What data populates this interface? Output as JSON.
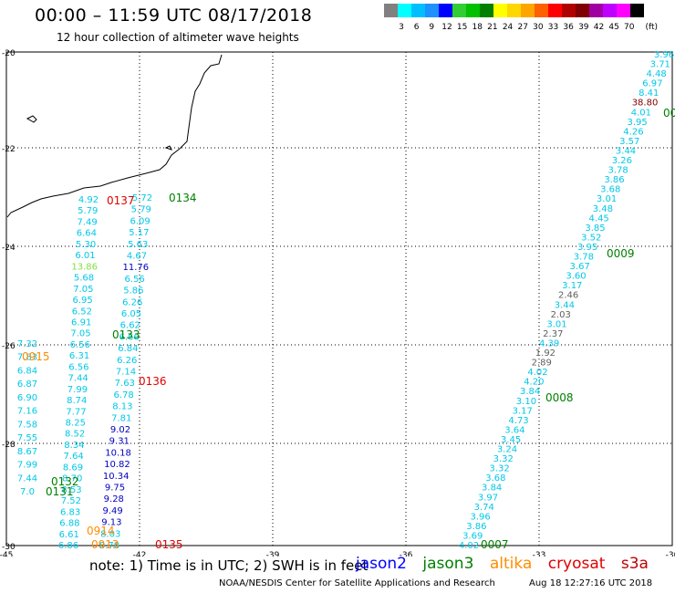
{
  "title": "00:00 – 11:59 UTC 08/17/2018",
  "subtitle": "12 hour collection of altimeter wave heights",
  "legend": {
    "colors": [
      "#808080",
      "#00ffff",
      "#00bfff",
      "#1e90ff",
      "#0000ff",
      "#32cd32",
      "#00c000",
      "#008000",
      "#ffff00",
      "#ffd700",
      "#ffa500",
      "#ff6000",
      "#ff0000",
      "#b00000",
      "#800000",
      "#a000a0",
      "#c000ff",
      "#ff00ff",
      "#000000"
    ],
    "labels": [
      "3",
      "6",
      "9",
      "12",
      "15",
      "18",
      "21",
      "24",
      "27",
      "30",
      "33",
      "36",
      "39",
      "42",
      "45",
      "70"
    ],
    "unit": "(ft)"
  },
  "axes": {
    "lat_labels": [
      "-20",
      "-22",
      "-24",
      "-26",
      "-28",
      "-30"
    ],
    "lon_labels": [
      "-45",
      "-42",
      "-39",
      "-36",
      "-33",
      "-30"
    ]
  },
  "passes": [
    {
      "id": "0134",
      "color": "#008000"
    },
    {
      "id": "0137",
      "color": "#e00000"
    },
    {
      "id": "0133",
      "color": "#008000"
    },
    {
      "id": "0915",
      "color": "#ff8c00"
    },
    {
      "id": "0136",
      "color": "#e00000"
    },
    {
      "id": "0132",
      "color": "#008000"
    },
    {
      "id": "0131",
      "color": "#008000"
    },
    {
      "id": "0914",
      "color": "#ff8c00"
    },
    {
      "id": "0913",
      "color": "#ff8c00"
    },
    {
      "id": "0135",
      "color": "#e00000"
    },
    {
      "id": "0009",
      "color": "#008000"
    },
    {
      "id": "0008",
      "color": "#008000"
    },
    {
      "id": "0007",
      "color": "#008000"
    },
    {
      "id": "00",
      "color": "#008000"
    }
  ],
  "tracks": {
    "east_track": [
      {
        "v": "3.96",
        "c": "#00c8e8"
      },
      {
        "v": "3.71",
        "c": "#00c8e8"
      },
      {
        "v": "4.48",
        "c": "#00c8e8"
      },
      {
        "v": "6.97",
        "c": "#00c8e8"
      },
      {
        "v": "8.41",
        "c": "#00c8e8"
      },
      {
        "v": "38.80",
        "c": "#800000"
      },
      {
        "v": "4.01",
        "c": "#00c8e8"
      },
      {
        "v": "3.95",
        "c": "#00c8e8"
      },
      {
        "v": "4.26",
        "c": "#00c8e8"
      },
      {
        "v": "3.57",
        "c": "#00c8e8"
      },
      {
        "v": "3.44",
        "c": "#00c8e8"
      },
      {
        "v": "3.26",
        "c": "#00c8e8"
      },
      {
        "v": "3.78",
        "c": "#00c8e8"
      },
      {
        "v": "3.86",
        "c": "#00c8e8"
      },
      {
        "v": "3.68",
        "c": "#00c8e8"
      },
      {
        "v": "3.01",
        "c": "#00c8e8"
      },
      {
        "v": "3.48",
        "c": "#00c8e8"
      },
      {
        "v": "4.45",
        "c": "#00c8e8"
      },
      {
        "v": "3.85",
        "c": "#00c8e8"
      },
      {
        "v": "3.52",
        "c": "#00c8e8"
      },
      {
        "v": "3.95",
        "c": "#00c8e8"
      },
      {
        "v": "3.78",
        "c": "#00c8e8"
      },
      {
        "v": "3.67",
        "c": "#00c8e8"
      },
      {
        "v": "3.60",
        "c": "#00c8e8"
      },
      {
        "v": "3.17",
        "c": "#00c8e8"
      },
      {
        "v": "2.46",
        "c": "#606060"
      },
      {
        "v": "3.44",
        "c": "#00c8e8"
      },
      {
        "v": "2.03",
        "c": "#606060"
      },
      {
        "v": "3.01",
        "c": "#00c8e8"
      },
      {
        "v": "2.37",
        "c": "#606060"
      },
      {
        "v": "4.39",
        "c": "#00c8e8"
      },
      {
        "v": "1.92",
        "c": "#606060"
      },
      {
        "v": "2.89",
        "c": "#606060"
      },
      {
        "v": "4.02",
        "c": "#00c8e8"
      },
      {
        "v": "4.20",
        "c": "#00c8e8"
      },
      {
        "v": "3.84",
        "c": "#00c8e8"
      },
      {
        "v": "3.10",
        "c": "#00c8e8"
      },
      {
        "v": "3.17",
        "c": "#00c8e8"
      },
      {
        "v": "4.73",
        "c": "#00c8e8"
      },
      {
        "v": "3.64",
        "c": "#00c8e8"
      },
      {
        "v": "3.45",
        "c": "#00c8e8"
      },
      {
        "v": "3.24",
        "c": "#00c8e8"
      },
      {
        "v": "3.32",
        "c": "#00c8e8"
      },
      {
        "v": "3.32",
        "c": "#00c8e8"
      },
      {
        "v": "3.68",
        "c": "#00c8e8"
      },
      {
        "v": "3.84",
        "c": "#00c8e8"
      },
      {
        "v": "3.97",
        "c": "#00c8e8"
      },
      {
        "v": "3.74",
        "c": "#00c8e8"
      },
      {
        "v": "3.96",
        "c": "#00c8e8"
      },
      {
        "v": "3.86",
        "c": "#00c8e8"
      },
      {
        "v": "3.69",
        "c": "#00c8e8"
      },
      {
        "v": "4.02",
        "c": "#00c8e8"
      }
    ],
    "west_track": [
      {
        "v": "4.92",
        "c": "#00c8e8"
      },
      {
        "v": "5.79",
        "c": "#00c8e8"
      },
      {
        "v": "7.49",
        "c": "#00c8e8"
      },
      {
        "v": "6.64",
        "c": "#00c8e8"
      },
      {
        "v": "5.30",
        "c": "#00c8e8"
      },
      {
        "v": "6.01",
        "c": "#00c8e8"
      },
      {
        "v": "13.86",
        "c": "#80e040"
      },
      {
        "v": "5.68",
        "c": "#00c8e8"
      },
      {
        "v": "7.05",
        "c": "#00c8e8"
      },
      {
        "v": "6.95",
        "c": "#00c8e8"
      },
      {
        "v": "6.52",
        "c": "#00c8e8"
      },
      {
        "v": "6.91",
        "c": "#00c8e8"
      },
      {
        "v": "7.05",
        "c": "#00c8e8"
      },
      {
        "v": "6.56",
        "c": "#00c8e8"
      },
      {
        "v": "6.31",
        "c": "#00c8e8"
      },
      {
        "v": "6.56",
        "c": "#00c8e8"
      },
      {
        "v": "7.44",
        "c": "#00c8e8"
      },
      {
        "v": "7.99",
        "c": "#00c8e8"
      },
      {
        "v": "8.74",
        "c": "#00c8e8"
      },
      {
        "v": "7.77",
        "c": "#00c8e8"
      },
      {
        "v": "8.25",
        "c": "#00c8e8"
      },
      {
        "v": "8.52",
        "c": "#00c8e8"
      },
      {
        "v": "8.34",
        "c": "#00c8e8"
      },
      {
        "v": "7.64",
        "c": "#00c8e8"
      },
      {
        "v": "8.69",
        "c": "#00c8e8"
      },
      {
        "v": "8.70",
        "c": "#00c8e8"
      },
      {
        "v": "8.53",
        "c": "#00c8e8"
      },
      {
        "v": "7.52",
        "c": "#00c8e8"
      },
      {
        "v": "6.83",
        "c": "#00c8e8"
      },
      {
        "v": "6.88",
        "c": "#00c8e8"
      },
      {
        "v": "6.61",
        "c": "#00c8e8"
      },
      {
        "v": "6.86",
        "c": "#00c8e8"
      }
    ],
    "mid_track": [
      {
        "v": "5.72",
        "c": "#00c8e8"
      },
      {
        "v": "5.79",
        "c": "#00c8e8"
      },
      {
        "v": "6.09",
        "c": "#00c8e8"
      },
      {
        "v": "5.17",
        "c": "#00c8e8"
      },
      {
        "v": "5.63",
        "c": "#00c8e8"
      },
      {
        "v": "4.67",
        "c": "#00c8e8"
      },
      {
        "v": "11.76",
        "c": "#0000c0"
      },
      {
        "v": "6.56",
        "c": "#00c8e8"
      },
      {
        "v": "5.86",
        "c": "#00c8e8"
      },
      {
        "v": "6.26",
        "c": "#00c8e8"
      },
      {
        "v": "6.05",
        "c": "#00c8e8"
      },
      {
        "v": "6.62",
        "c": "#00c8e8"
      },
      {
        "v": "6.66",
        "c": "#00c8e8"
      },
      {
        "v": "6.84",
        "c": "#00c8e8"
      },
      {
        "v": "6.26",
        "c": "#00c8e8"
      },
      {
        "v": "7.14",
        "c": "#00c8e8"
      },
      {
        "v": "7.63",
        "c": "#00c8e8"
      },
      {
        "v": "6.78",
        "c": "#00c8e8"
      },
      {
        "v": "8.13",
        "c": "#00c8e8"
      },
      {
        "v": "7.81",
        "c": "#00c8e8"
      },
      {
        "v": "9.02",
        "c": "#0000c0"
      },
      {
        "v": "9.31",
        "c": "#0000c0"
      },
      {
        "v": "10.18",
        "c": "#0000c0"
      },
      {
        "v": "10.82",
        "c": "#0000c0"
      },
      {
        "v": "10.34",
        "c": "#0000c0"
      },
      {
        "v": "9.75",
        "c": "#0000c0"
      },
      {
        "v": "9.28",
        "c": "#0000c0"
      },
      {
        "v": "9.49",
        "c": "#0000c0"
      },
      {
        "v": "9.13",
        "c": "#0000c0"
      },
      {
        "v": "8.03",
        "c": "#00c8e8"
      },
      {
        "v": "8.78",
        "c": "#00c8e8"
      }
    ],
    "far_west": [
      {
        "v": "7.32",
        "c": "#00c8e8"
      },
      {
        "v": "7.83",
        "c": "#00c8e8"
      },
      {
        "v": "6.84",
        "c": "#00c8e8"
      },
      {
        "v": "6.87",
        "c": "#00c8e8"
      },
      {
        "v": "6.90",
        "c": "#00c8e8"
      },
      {
        "v": "7.16",
        "c": "#00c8e8"
      },
      {
        "v": "7.58",
        "c": "#00c8e8"
      },
      {
        "v": "7.55",
        "c": "#00c8e8"
      },
      {
        "v": "8.67",
        "c": "#00c8e8"
      },
      {
        "v": "7.99",
        "c": "#00c8e8"
      },
      {
        "v": "7.44",
        "c": "#00c8e8"
      },
      {
        "v": "7.0",
        "c": "#00c8e8"
      }
    ]
  },
  "footer": {
    "note": "note:  1) Time is in UTC;  2) SWH is in feet",
    "satellites": [
      {
        "name": "jason2",
        "color": "#0000ff"
      },
      {
        "name": "jason3",
        "color": "#008000"
      },
      {
        "name": "altika",
        "color": "#ff8c00"
      },
      {
        "name": "cryosat",
        "color": "#e00000"
      },
      {
        "name": "s3a",
        "color": "#c00000"
      }
    ],
    "credit": "NOAA/NESDIS Center for Satellite Applications and Research",
    "timestamp": "Aug 18 12:27:16 UTC 2018"
  }
}
